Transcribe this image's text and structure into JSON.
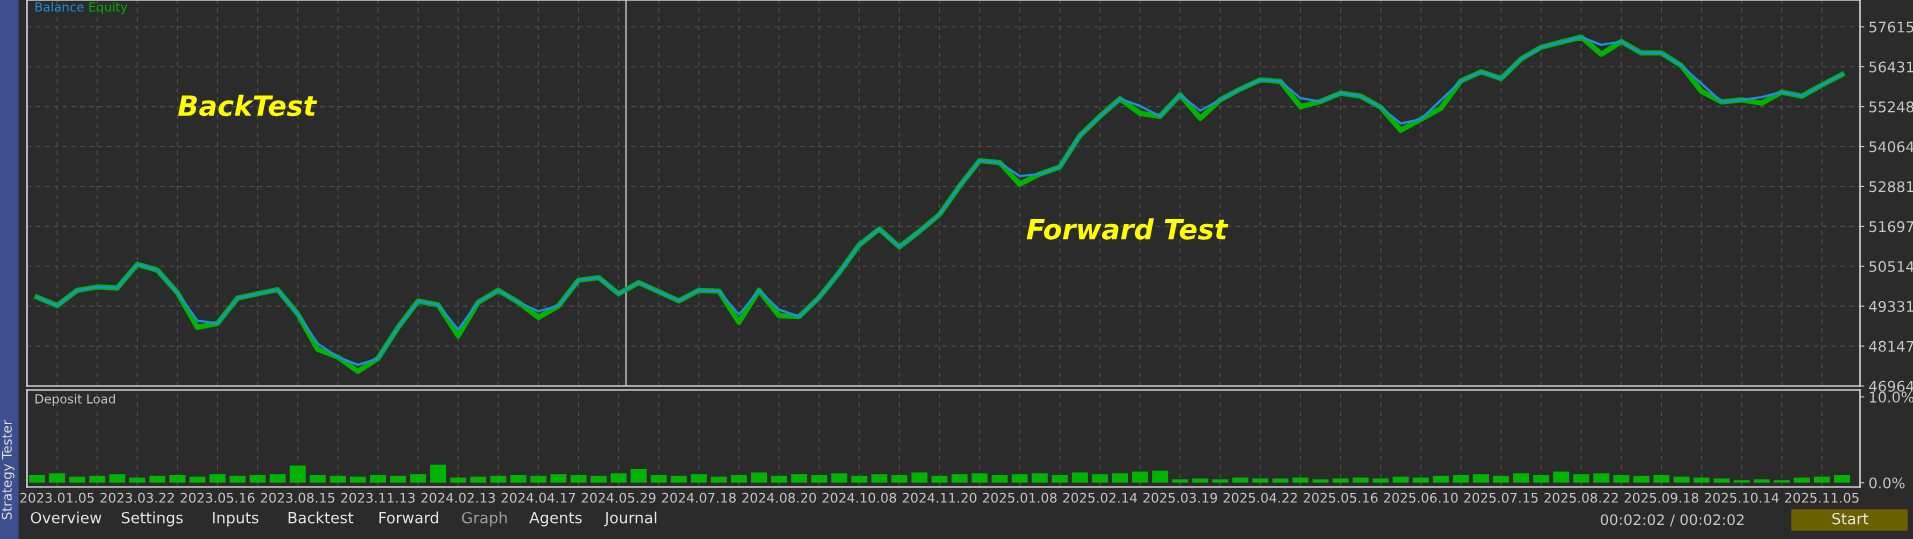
{
  "chart_data": [
    {
      "type": "line",
      "ylim": [
        46964,
        58410
      ],
      "categories": [
        null,
        "2023.01.05",
        null,
        null,
        null,
        "2023.03.22",
        null,
        null,
        null,
        "2023.05.16",
        null,
        null,
        null,
        "2023.08.15",
        null,
        null,
        null,
        "2023.11.13",
        null,
        null,
        null,
        "2024.02.13",
        null,
        null,
        null,
        "2024.04.17",
        null,
        null,
        null,
        "2024.05.29",
        null,
        null,
        null,
        "2024.07.18",
        null,
        null,
        null,
        "2024.08.20",
        null,
        null,
        null,
        "2024.10.08",
        null,
        null,
        null,
        "2024.11.20",
        null,
        null,
        null,
        "2025.01.08",
        null,
        null,
        null,
        "2025.02.14",
        null,
        null,
        null,
        "2025.03.19",
        null,
        null,
        null,
        "2025.04.22",
        null,
        null,
        null,
        "2025.05.16",
        null,
        null,
        null,
        "2025.06.10",
        null,
        null,
        null,
        "2025.07.15",
        null,
        null,
        null,
        "2025.08.22",
        null,
        null,
        null,
        "2025.09.18",
        null,
        null,
        null,
        "2025.10.14",
        null,
        null,
        null,
        "2025.11.05",
        null
      ],
      "yticks": [
        46964,
        48147,
        49331,
        50514,
        51697,
        52881,
        54064,
        55248,
        56431,
        57615
      ],
      "tick_labels": "y",
      "grid": true,
      "legend": "top left",
      "annotations": [
        "BackTest",
        "Forward Test"
      ],
      "series": [
        {
          "name": "Equity",
          "color": "#00b400",
          "values": [
            49600,
            49350,
            49800,
            49900,
            49870,
            50570,
            50400,
            49730,
            48700,
            48820,
            49570,
            49700,
            49820,
            49100,
            48050,
            47820,
            47400,
            47780,
            48700,
            49480,
            49370,
            48450,
            49450,
            49800,
            49450,
            49000,
            49340,
            50100,
            50180,
            49700,
            50030,
            49760,
            49490,
            49800,
            49780,
            48850,
            49800,
            49050,
            49020,
            49590,
            50330,
            51150,
            51620,
            51090,
            51550,
            52050,
            52890,
            53650,
            53590,
            52950,
            53250,
            53460,
            54390,
            54960,
            55480,
            55050,
            54960,
            55600,
            54900,
            55450,
            55770,
            56040,
            56000,
            55250,
            55400,
            55650,
            55560,
            55230,
            54550,
            54870,
            55200,
            56010,
            56280,
            56080,
            56660,
            57010,
            57160,
            57310,
            56800,
            57180,
            56840,
            56840,
            56460,
            55700,
            55390,
            55450,
            55350,
            55680,
            55560,
            55890,
            56200
          ]
        },
        {
          "name": "Balance",
          "color": "#1e8fe0",
          "values": [
            49600,
            49350,
            49800,
            49900,
            49870,
            50570,
            50400,
            49730,
            48900,
            48820,
            49570,
            49700,
            49820,
            49100,
            48220,
            47820,
            47590,
            47780,
            48700,
            49480,
            49370,
            48640,
            49450,
            49800,
            49450,
            49180,
            49340,
            50100,
            50180,
            49700,
            50030,
            49760,
            49490,
            49800,
            49780,
            49080,
            49800,
            49230,
            49020,
            49590,
            50330,
            51150,
            51620,
            51090,
            51550,
            52050,
            52890,
            53650,
            53590,
            53190,
            53250,
            53460,
            54390,
            54960,
            55480,
            55270,
            54960,
            55600,
            55130,
            55450,
            55770,
            56040,
            56000,
            55500,
            55400,
            55650,
            55560,
            55230,
            54750,
            54870,
            55440,
            56010,
            56280,
            56080,
            56660,
            57010,
            57160,
            57310,
            57080,
            57180,
            56840,
            56840,
            56460,
            55930,
            55390,
            55450,
            55530,
            55680,
            55560,
            55890,
            56200
          ]
        }
      ]
    },
    {
      "type": "bar",
      "title": "Deposit Load",
      "ylim": [
        -0.5,
        10.8
      ],
      "categories": [
        null,
        "2023.01.05",
        null,
        null,
        null,
        "2023.03.22",
        null,
        null,
        null,
        "2023.05.16",
        null,
        null,
        null,
        "2023.08.15",
        null,
        null,
        null,
        "2023.11.13",
        null,
        null,
        null,
        "2024.02.13",
        null,
        null,
        null,
        "2024.04.17",
        null,
        null,
        null,
        "2024.05.29",
        null,
        null,
        null,
        "2024.07.18",
        null,
        null,
        null,
        "2024.08.20",
        null,
        null,
        null,
        "2024.10.08",
        null,
        null,
        null,
        "2024.11.20",
        null,
        null,
        null,
        "2025.01.08",
        null,
        null,
        null,
        "2025.02.14",
        null,
        null,
        null,
        "2025.03.19",
        null,
        null,
        null,
        "2025.04.22",
        null,
        null,
        null,
        "2025.05.16",
        null,
        null,
        null,
        "2025.06.10",
        null,
        null,
        null,
        "2025.07.15",
        null,
        null,
        null,
        "2025.08.22",
        null,
        null,
        null,
        "2025.09.18",
        null,
        null,
        null,
        "2025.10.14",
        null,
        null,
        null,
        "2025.11.05",
        null
      ],
      "yticks": [
        {
          "value": 0,
          "label": "0.0%"
        },
        {
          "value": 10,
          "label": "10.0%"
        }
      ],
      "grid": "x",
      "color": "#00b400",
      "values": [
        0.9,
        1.1,
        0.7,
        0.8,
        1.0,
        0.6,
        0.8,
        0.9,
        0.7,
        1.0,
        0.8,
        0.9,
        1.0,
        2.0,
        0.9,
        0.8,
        0.7,
        0.9,
        0.8,
        1.0,
        2.1,
        0.6,
        0.7,
        0.8,
        0.9,
        0.8,
        1.0,
        0.9,
        0.8,
        1.1,
        1.6,
        0.9,
        0.8,
        1.0,
        0.7,
        0.9,
        1.2,
        0.8,
        1.0,
        0.9,
        1.1,
        0.8,
        1.0,
        0.9,
        1.2,
        0.8,
        1.0,
        1.1,
        0.9,
        1.0,
        1.1,
        0.9,
        1.2,
        1.0,
        1.1,
        1.3,
        1.4,
        0.4,
        0.5,
        0.4,
        0.6,
        0.5,
        0.5,
        0.6,
        0.4,
        0.5,
        0.6,
        0.5,
        0.7,
        0.6,
        0.8,
        0.9,
        1.0,
        0.8,
        1.1,
        0.9,
        1.3,
        1.0,
        1.1,
        0.9,
        0.8,
        0.9,
        0.7,
        0.6,
        0.5,
        0.3,
        0.4,
        0.3,
        0.6,
        0.7,
        0.9
      ]
    },
    {
      "type": "other",
      "annotations": [
        "Strategy Tester",
        "Overview",
        "Settings",
        "Inputs",
        "Backtest",
        "Forward",
        "Graph",
        "Agents",
        "Journal",
        "00:02:02 / 00:02:02",
        "Start"
      ]
    }
  ]
}
